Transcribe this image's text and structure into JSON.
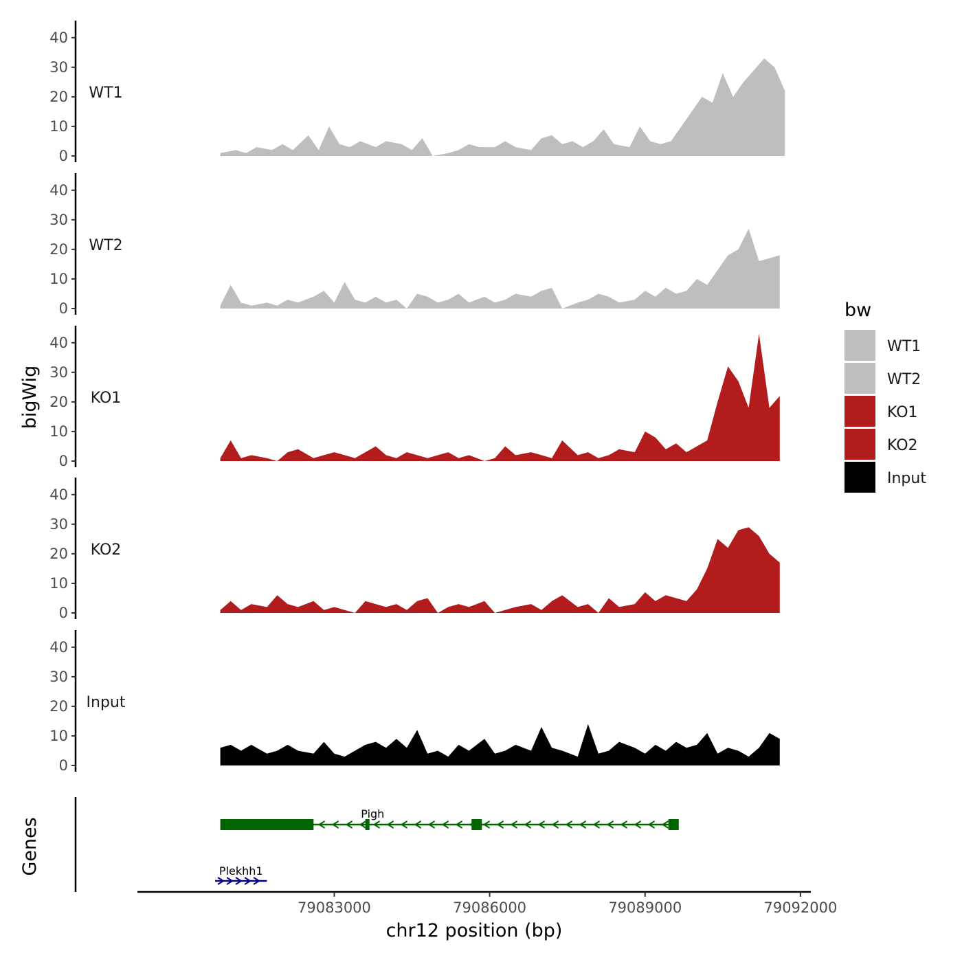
{
  "chart_data": {
    "type": "area",
    "ylabel": "bigWig",
    "xlabel": "chr12 position (bp)",
    "xlim": [
      79079200,
      79092200
    ],
    "ylim": [
      0,
      46
    ],
    "y_ticks": [
      0,
      10,
      20,
      30,
      40
    ],
    "x_ticks": [
      79083000,
      79086000,
      79089000,
      79092000
    ],
    "x_tick_labels": [
      "79083000",
      "79086000",
      "79089000",
      "79092000"
    ],
    "legend_title": "bw",
    "series": [
      {
        "name": "WT1",
        "color": "#bebebe",
        "x": [
          79080800,
          79081100,
          79081300,
          79081500,
          79081800,
          79082000,
          79082200,
          79082500,
          79082700,
          79082900,
          79083100,
          79083300,
          79083500,
          79083800,
          79084000,
          79084300,
          79084500,
          79084700,
          79084900,
          79085200,
          79085400,
          79085600,
          79085800,
          79086100,
          79086300,
          79086500,
          79086800,
          79087000,
          79087200,
          79087400,
          79087600,
          79087800,
          79088000,
          79088200,
          79088400,
          79088700,
          79088900,
          79089100,
          79089300,
          79089500,
          79089700,
          79089900,
          79090100,
          79090300,
          79090500,
          79090700,
          79090900,
          79091100,
          79091300,
          79091500,
          79091700
        ],
        "values": [
          1,
          2,
          1,
          3,
          2,
          4,
          2,
          7,
          2,
          10,
          4,
          3,
          5,
          3,
          5,
          4,
          2,
          6,
          0,
          1,
          2,
          4,
          3,
          3,
          5,
          3,
          2,
          6,
          7,
          4,
          5,
          3,
          5,
          9,
          4,
          3,
          10,
          5,
          4,
          5,
          10,
          15,
          20,
          18,
          28,
          20,
          25,
          29,
          33,
          30,
          22
        ]
      },
      {
        "name": "WT2",
        "color": "#bebebe",
        "x": [
          79080800,
          79081000,
          79081200,
          79081400,
          79081700,
          79081900,
          79082100,
          79082300,
          79082600,
          79082800,
          79083000,
          79083200,
          79083400,
          79083600,
          79083800,
          79084000,
          79084200,
          79084400,
          79084600,
          79084800,
          79085000,
          79085200,
          79085400,
          79085600,
          79085900,
          79086100,
          79086300,
          79086500,
          79086800,
          79087000,
          79087200,
          79087400,
          79087700,
          79087900,
          79088100,
          79088300,
          79088500,
          79088800,
          79089000,
          79089200,
          79089400,
          79089600,
          79089800,
          79090000,
          79090200,
          79090400,
          79090600,
          79090800,
          79091000,
          79091200,
          79091400,
          79091600
        ],
        "values": [
          1,
          8,
          2,
          1,
          2,
          1,
          3,
          2,
          4,
          6,
          2,
          9,
          3,
          2,
          4,
          2,
          3,
          0,
          5,
          4,
          2,
          3,
          5,
          2,
          4,
          2,
          3,
          5,
          4,
          6,
          7,
          0,
          2,
          3,
          5,
          4,
          2,
          3,
          6,
          4,
          7,
          5,
          6,
          10,
          8,
          13,
          18,
          20,
          27,
          16,
          17,
          18
        ]
      },
      {
        "name": "KO1",
        "color": "#b21c1c",
        "x": [
          79080800,
          79081000,
          79081200,
          79081400,
          79081700,
          79081900,
          79082100,
          79082300,
          79082600,
          79082800,
          79083000,
          79083200,
          79083400,
          79083600,
          79083800,
          79084000,
          79084200,
          79084400,
          79084600,
          79084800,
          79085000,
          79085200,
          79085400,
          79085600,
          79085900,
          79086100,
          79086300,
          79086500,
          79086800,
          79087000,
          79087200,
          79087400,
          79087700,
          79087900,
          79088100,
          79088300,
          79088500,
          79088800,
          79089000,
          79089200,
          79089400,
          79089600,
          79089800,
          79090000,
          79090200,
          79090400,
          79090600,
          79090800,
          79091000,
          79091200,
          79091400,
          79091600
        ],
        "values": [
          1,
          7,
          1,
          2,
          1,
          0,
          3,
          4,
          1,
          2,
          3,
          2,
          1,
          3,
          5,
          2,
          1,
          3,
          2,
          1,
          2,
          3,
          1,
          2,
          0,
          1,
          5,
          2,
          3,
          2,
          1,
          7,
          2,
          3,
          1,
          2,
          4,
          3,
          10,
          8,
          4,
          6,
          3,
          5,
          7,
          20,
          32,
          27,
          18,
          43,
          18,
          22
        ]
      },
      {
        "name": "KO2",
        "color": "#b21c1c",
        "x": [
          79080800,
          79081000,
          79081200,
          79081400,
          79081700,
          79081900,
          79082100,
          79082300,
          79082600,
          79082800,
          79083000,
          79083200,
          79083400,
          79083600,
          79083800,
          79084000,
          79084200,
          79084400,
          79084600,
          79084800,
          79085000,
          79085200,
          79085400,
          79085600,
          79085900,
          79086100,
          79086300,
          79086500,
          79086800,
          79087000,
          79087200,
          79087400,
          79087700,
          79087900,
          79088100,
          79088300,
          79088500,
          79088800,
          79089000,
          79089200,
          79089400,
          79089600,
          79089800,
          79090000,
          79090200,
          79090400,
          79090600,
          79090800,
          79091000,
          79091200,
          79091400,
          79091600
        ],
        "values": [
          1,
          4,
          1,
          3,
          2,
          6,
          3,
          2,
          4,
          1,
          2,
          1,
          0,
          4,
          3,
          2,
          3,
          1,
          4,
          5,
          0,
          2,
          3,
          2,
          4,
          0,
          1,
          2,
          3,
          1,
          4,
          6,
          2,
          3,
          0,
          5,
          2,
          3,
          7,
          4,
          6,
          5,
          4,
          8,
          15,
          25,
          22,
          28,
          29,
          26,
          20,
          17
        ]
      },
      {
        "name": "Input",
        "color": "#000000",
        "x": [
          79080800,
          79081000,
          79081200,
          79081400,
          79081700,
          79081900,
          79082100,
          79082300,
          79082600,
          79082800,
          79083000,
          79083200,
          79083400,
          79083600,
          79083800,
          79084000,
          79084200,
          79084400,
          79084600,
          79084800,
          79085000,
          79085200,
          79085400,
          79085600,
          79085900,
          79086100,
          79086300,
          79086500,
          79086800,
          79087000,
          79087200,
          79087400,
          79087700,
          79087900,
          79088100,
          79088300,
          79088500,
          79088800,
          79089000,
          79089200,
          79089400,
          79089600,
          79089800,
          79090000,
          79090200,
          79090400,
          79090600,
          79090800,
          79091000,
          79091200,
          79091400,
          79091600
        ],
        "values": [
          6,
          7,
          5,
          7,
          4,
          5,
          7,
          5,
          4,
          8,
          4,
          3,
          5,
          7,
          8,
          6,
          9,
          6,
          12,
          4,
          5,
          3,
          7,
          5,
          9,
          4,
          5,
          7,
          5,
          13,
          6,
          5,
          3,
          14,
          4,
          5,
          8,
          6,
          4,
          7,
          5,
          8,
          6,
          7,
          11,
          4,
          6,
          5,
          3,
          6,
          11,
          9
        ]
      }
    ],
    "genes": {
      "title": "Genes",
      "items": [
        {
          "name": "Pigh",
          "color": "#006400",
          "strand": "-",
          "start": 79080800,
          "end": 79089600,
          "exons": [
            [
              79080800,
              79082600
            ],
            [
              79083600,
              79083680
            ],
            [
              79085650,
              79085850
            ],
            [
              79089450,
              79089650
            ]
          ]
        },
        {
          "name": "Plekhh1",
          "color": "#00008b",
          "strand": "+",
          "start": 79080700,
          "end": 79081700,
          "exons": []
        }
      ]
    }
  }
}
